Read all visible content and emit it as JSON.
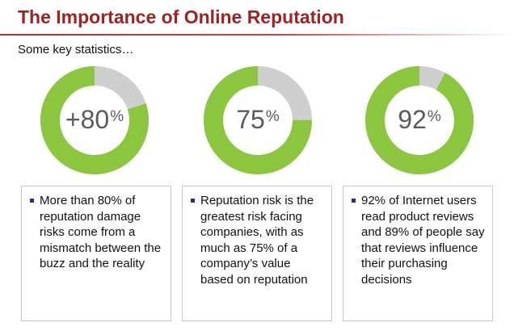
{
  "header": {
    "title": "The Importance of Online Reputation",
    "subtitle": "Some key statistics…"
  },
  "stats": [
    {
      "value": 80,
      "label": "+80",
      "percent_sign": "%",
      "text": "More than 80% of reputation damage risks come from a mismatch between the buzz and the reality"
    },
    {
      "value": 75,
      "label": "75",
      "percent_sign": "%",
      "text": "Reputation risk is the greatest risk facing companies, with as much as 75% of a company’s value based on reputation"
    },
    {
      "value": 92,
      "label": "92",
      "percent_sign": "%",
      "text": "92% of Internet users read product reviews and 89% of people say that reviews influence their purchasing decisions"
    }
  ],
  "colors": {
    "title": "#9e2424",
    "ring_fill": "#8cc63f",
    "ring_remainder": "#cfcfcf",
    "bullet": "#2d2a8c",
    "label": "#5b5b5b"
  }
}
